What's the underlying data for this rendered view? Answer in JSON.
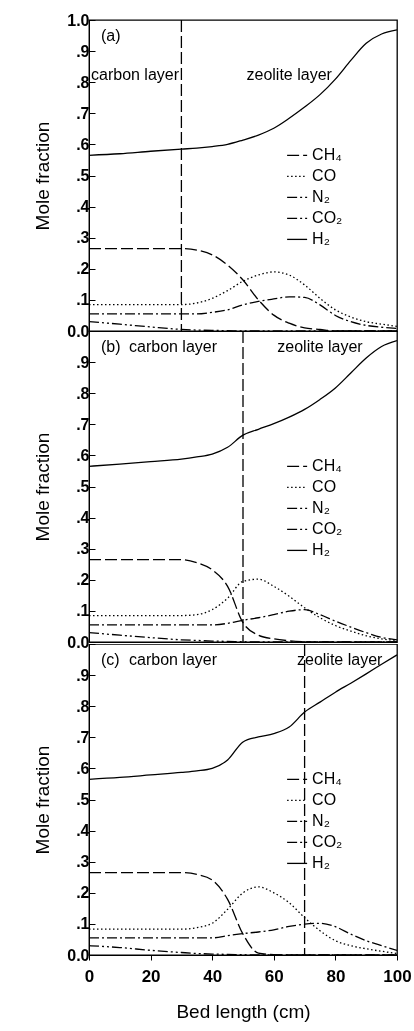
{
  "chart_data": [
    {
      "type": "line",
      "ylabel": "Mole fraction",
      "x": [
        0,
        10,
        20,
        30,
        35,
        40,
        45,
        50,
        55,
        60,
        65,
        70,
        75,
        80,
        85,
        90,
        95,
        100
      ],
      "xlim": [
        0,
        100
      ],
      "xticks": [
        0,
        20,
        40,
        60,
        80,
        100
      ],
      "ylim": [
        0,
        1
      ],
      "yticks": [
        {
          "value": 0,
          "label": "0.0"
        },
        {
          "value": 0.1,
          "label": ".1"
        },
        {
          "value": 0.2,
          "label": ".2"
        },
        {
          "value": 0.3,
          "label": ".3"
        },
        {
          "value": 0.4,
          "label": ".4"
        },
        {
          "value": 0.5,
          "label": ".5"
        },
        {
          "value": 0.6,
          "label": ".6"
        },
        {
          "value": 0.7,
          "label": ".7"
        },
        {
          "value": 0.8,
          "label": ".8"
        },
        {
          "value": 0.9,
          "label": ".9"
        },
        {
          "value": 1,
          "label": "1.0"
        }
      ],
      "tick_labels": "y",
      "legend": "right",
      "series": [
        {
          "name": "CH₄",
          "color": "#000000",
          "line_style": "dashed",
          "values": [
            0.265,
            0.265,
            0.265,
            0.265,
            0.26,
            0.245,
            0.212,
            0.164,
            0.1,
            0.051,
            0.025,
            0.01,
            0.005,
            0,
            0,
            0,
            0,
            0
          ]
        },
        {
          "name": "CO",
          "color": "#000000",
          "line_style": "dotted",
          "values": [
            0.085,
            0.085,
            0.085,
            0.085,
            0.09,
            0.105,
            0.13,
            0.16,
            0.18,
            0.19,
            0.18,
            0.148,
            0.105,
            0.068,
            0.045,
            0.03,
            0.022,
            0.015
          ]
        },
        {
          "name": "N₂",
          "color": "#000000",
          "line_style": "dashdot",
          "values": [
            0.055,
            0.055,
            0.055,
            0.055,
            0.055,
            0.06,
            0.068,
            0.084,
            0.095,
            0.103,
            0.11,
            0.108,
            0.084,
            0.05,
            0.03,
            0.018,
            0.012,
            0.008
          ]
        },
        {
          "name": "CO₂",
          "color": "#000000",
          "line_style": "dashdotdot",
          "values": [
            0.03,
            0.022,
            0.013,
            0.005,
            0.003,
            0.002,
            0.001,
            0,
            0,
            0,
            0,
            0,
            0,
            0,
            0,
            0,
            0,
            0
          ]
        },
        {
          "name": "H₂",
          "color": "#000000",
          "line_style": "solid",
          "values": [
            0.565,
            0.57,
            0.578,
            0.585,
            0.588,
            0.593,
            0.6,
            0.614,
            0.63,
            0.652,
            0.684,
            0.72,
            0.76,
            0.81,
            0.87,
            0.925,
            0.955,
            0.968
          ]
        }
      ],
      "ref_lines": [
        {
          "axis": "x",
          "value": 30,
          "color": "#000000",
          "line_style": "dashed"
        }
      ],
      "annotations": [
        "(a)",
        "carbon layer",
        "zeolite layer"
      ]
    },
    {
      "type": "line",
      "ylabel": "Mole fraction",
      "x": [
        0,
        10,
        20,
        30,
        35,
        40,
        45,
        50,
        55,
        60,
        65,
        70,
        75,
        80,
        85,
        90,
        95,
        100
      ],
      "xlim": [
        0,
        100
      ],
      "xticks": [
        0,
        20,
        40,
        60,
        80,
        100
      ],
      "ylim": [
        0,
        1
      ],
      "yticks": [
        {
          "value": 0,
          "label": "0.0"
        },
        {
          "value": 0.1,
          "label": ".1"
        },
        {
          "value": 0.2,
          "label": ".2"
        },
        {
          "value": 0.3,
          "label": ".3"
        },
        {
          "value": 0.4,
          "label": ".4"
        },
        {
          "value": 0.5,
          "label": ".5"
        },
        {
          "value": 0.6,
          "label": ".6"
        },
        {
          "value": 0.7,
          "label": ".7"
        },
        {
          "value": 0.8,
          "label": ".8"
        },
        {
          "value": 0.9,
          "label": ".9"
        },
        {
          "value": 1,
          "label": null
        }
      ],
      "tick_labels": "y",
      "legend": "right",
      "series": [
        {
          "name": "CH₄",
          "color": "#000000",
          "line_style": "dashed",
          "values": [
            0.265,
            0.265,
            0.265,
            0.265,
            0.255,
            0.232,
            0.179,
            0.062,
            0.022,
            0.01,
            0.004,
            0.001,
            0,
            0,
            0,
            0,
            0,
            0
          ]
        },
        {
          "name": "CO",
          "color": "#000000",
          "line_style": "dotted",
          "values": [
            0.085,
            0.085,
            0.085,
            0.085,
            0.088,
            0.104,
            0.141,
            0.195,
            0.202,
            0.179,
            0.147,
            0.11,
            0.078,
            0.053,
            0.035,
            0.02,
            0.01,
            0.005
          ]
        },
        {
          "name": "N₂",
          "color": "#000000",
          "line_style": "dashdot",
          "values": [
            0.055,
            0.055,
            0.055,
            0.055,
            0.055,
            0.055,
            0.06,
            0.07,
            0.078,
            0.088,
            0.099,
            0.104,
            0.088,
            0.067,
            0.048,
            0.03,
            0.015,
            0.007
          ]
        },
        {
          "name": "CO₂",
          "color": "#000000",
          "line_style": "dashdotdot",
          "values": [
            0.03,
            0.022,
            0.014,
            0.007,
            0.005,
            0.003,
            0.002,
            0.001,
            0,
            0,
            0,
            0,
            0,
            0,
            0,
            0,
            0,
            0
          ]
        },
        {
          "name": "H₂",
          "color": "#000000",
          "line_style": "solid",
          "values": [
            0.565,
            0.572,
            0.58,
            0.588,
            0.595,
            0.604,
            0.626,
            0.665,
            0.684,
            0.702,
            0.723,
            0.748,
            0.78,
            0.817,
            0.865,
            0.913,
            0.95,
            0.969
          ]
        }
      ],
      "ref_lines": [
        {
          "axis": "x",
          "value": 50,
          "color": "#000000",
          "line_style": "dashed"
        }
      ],
      "annotations": [
        "(b)",
        "carbon layer",
        "zeolite layer"
      ]
    },
    {
      "type": "line",
      "ylabel": "Mole fraction",
      "xlabel": "Bed length (cm)",
      "x": [
        0,
        10,
        20,
        30,
        35,
        40,
        45,
        50,
        55,
        60,
        65,
        70,
        75,
        80,
        85,
        90,
        95,
        100
      ],
      "xlim": [
        0,
        100
      ],
      "xticks": [
        0,
        20,
        40,
        60,
        80,
        100
      ],
      "ylim": [
        0,
        1
      ],
      "yticks": [
        {
          "value": 0,
          "label": "0.0"
        },
        {
          "value": 0.1,
          "label": ".1"
        },
        {
          "value": 0.2,
          "label": ".2"
        },
        {
          "value": 0.3,
          "label": ".3"
        },
        {
          "value": 0.4,
          "label": ".4"
        },
        {
          "value": 0.5,
          "label": ".5"
        },
        {
          "value": 0.6,
          "label": ".6"
        },
        {
          "value": 0.7,
          "label": ".7"
        },
        {
          "value": 0.8,
          "label": ".8"
        },
        {
          "value": 0.9,
          "label": ".9"
        },
        {
          "value": 1,
          "label": null
        }
      ],
      "legend": "right",
      "series": [
        {
          "name": "CH₄",
          "color": "#000000",
          "line_style": "dashed",
          "values": [
            0.265,
            0.265,
            0.265,
            0.265,
            0.259,
            0.241,
            0.179,
            0.067,
            0.006,
            0.001,
            0,
            0,
            0,
            0,
            0,
            0,
            0,
            0
          ]
        },
        {
          "name": "CO",
          "color": "#000000",
          "line_style": "dotted",
          "values": [
            0.083,
            0.083,
            0.083,
            0.083,
            0.088,
            0.102,
            0.147,
            0.2,
            0.219,
            0.2,
            0.168,
            0.12,
            0.078,
            0.046,
            0.03,
            0.02,
            0.012,
            0.005
          ]
        },
        {
          "name": "N₂",
          "color": "#000000",
          "line_style": "dashdot",
          "values": [
            0.055,
            0.055,
            0.055,
            0.055,
            0.055,
            0.055,
            0.062,
            0.069,
            0.074,
            0.081,
            0.092,
            0.099,
            0.102,
            0.091,
            0.067,
            0.046,
            0.03,
            0.015
          ]
        },
        {
          "name": "CO₂",
          "color": "#000000",
          "line_style": "dashdotdot",
          "values": [
            0.03,
            0.024,
            0.015,
            0.008,
            0.005,
            0.003,
            0.002,
            0.001,
            0,
            0,
            0,
            0,
            0,
            0,
            0,
            0,
            0,
            0
          ]
        },
        {
          "name": "H₂",
          "color": "#000000",
          "line_style": "solid",
          "values": [
            0.565,
            0.571,
            0.579,
            0.587,
            0.592,
            0.6,
            0.627,
            0.685,
            0.701,
            0.712,
            0.733,
            0.781,
            0.813,
            0.845,
            0.874,
            0.904,
            0.935,
            0.965
          ]
        }
      ],
      "ref_lines": [
        {
          "axis": "x",
          "value": 70,
          "color": "#000000",
          "line_style": "dashed"
        }
      ],
      "annotations": [
        "(c)",
        "carbon layer",
        "zeolite layer"
      ]
    }
  ]
}
